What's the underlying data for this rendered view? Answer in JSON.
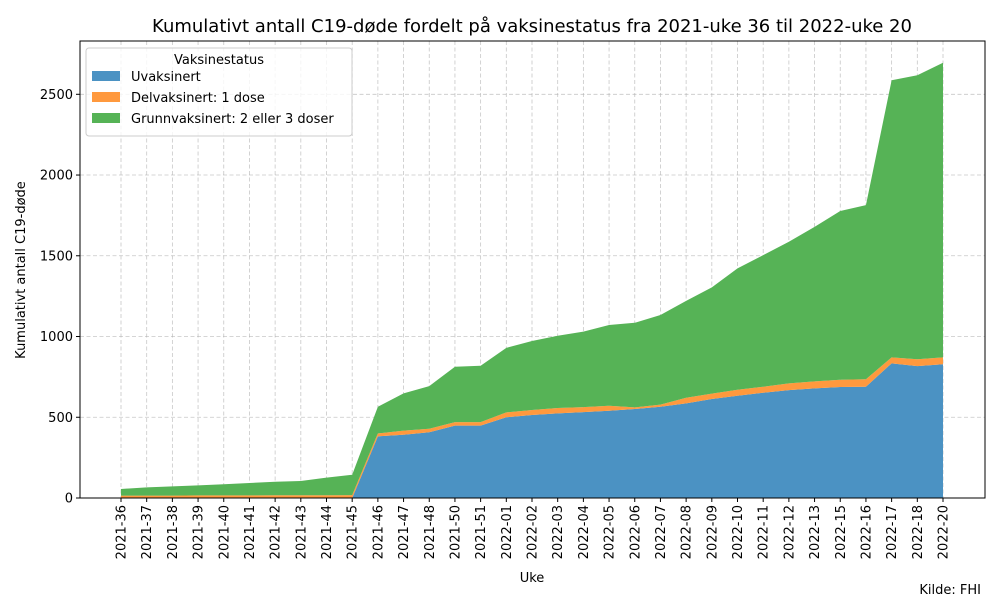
{
  "chart_data": {
    "type": "area",
    "stacked": true,
    "title": "Kumulativt antall C19-døde fordelt på vaksinestatus fra 2021-uke 36 til 2022-uke 20",
    "xlabel": "Uke",
    "ylabel": "Kumulativt antall C19-døde",
    "source_note": "Kilde: FHI",
    "ylim": [
      0,
      2830
    ],
    "yticks": [
      0,
      500,
      1000,
      1500,
      2000,
      2500
    ],
    "grid": true,
    "legend": {
      "title": "Vaksinestatus",
      "placement": "top-left"
    },
    "categories": [
      "2021-36",
      "2021-37",
      "2021-38",
      "2021-39",
      "2021-40",
      "2021-41",
      "2021-42",
      "2021-43",
      "2021-44",
      "2021-45",
      "2021-46",
      "2021-47",
      "2021-48",
      "2021-50",
      "2021-51",
      "2022-01",
      "2022-02",
      "2022-03",
      "2022-04",
      "2022-05",
      "2022-06",
      "2022-07",
      "2022-08",
      "2022-09",
      "2022-10",
      "2022-11",
      "2022-12",
      "2022-13",
      "2022-15",
      "2022-16",
      "2022-17",
      "2022-18",
      "2022-20"
    ],
    "series": [
      {
        "name": "Uvaksinert",
        "color": "#4b92c3",
        "values": [
          0,
          0,
          0,
          0,
          0,
          0,
          0,
          0,
          0,
          0,
          382,
          392,
          407,
          448,
          448,
          500,
          514,
          524,
          532,
          540,
          551,
          565,
          586,
          613,
          633,
          652,
          668,
          679,
          687,
          689,
          834,
          817,
          828
        ]
      },
      {
        "name": "Delvaksinert: 1 dose",
        "color": "#ff993e",
        "values": [
          15,
          15,
          15,
          16,
          16,
          16,
          17,
          17,
          17,
          18,
          18,
          25,
          22,
          22,
          22,
          30,
          31,
          33,
          31,
          31,
          10,
          13,
          35,
          33,
          37,
          37,
          42,
          43,
          45,
          46,
          37,
          42,
          43
        ]
      },
      {
        "name": "Grunnvaksinert: 2 eller 3 doser",
        "color": "#56b356",
        "values": [
          41,
          51,
          57,
          62,
          69,
          77,
          84,
          88,
          109,
          126,
          165,
          231,
          264,
          343,
          349,
          400,
          427,
          448,
          467,
          500,
          524,
          555,
          600,
          658,
          752,
          815,
          877,
          957,
          1045,
          1079,
          1716,
          1759,
          1824
        ]
      }
    ]
  }
}
